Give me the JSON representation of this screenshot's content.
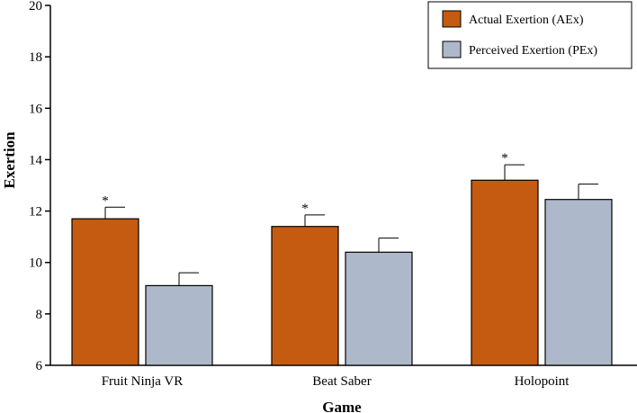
{
  "chart_data": {
    "type": "bar",
    "title": "",
    "xlabel": "Game",
    "ylabel": "Exertion",
    "ylim": [
      6,
      20
    ],
    "yticks": [
      6,
      8,
      10,
      12,
      14,
      16,
      18,
      20
    ],
    "categories": [
      "Fruit Ninja VR",
      "Beat Saber",
      "Holopoint"
    ],
    "series": [
      {
        "name": "Actual Exertion (AEx)",
        "color": "#c55a11",
        "values": [
          11.7,
          11.4,
          13.2
        ],
        "error": [
          0.45,
          0.45,
          0.6
        ],
        "significance": [
          "*",
          "*",
          "*"
        ]
      },
      {
        "name": "Perceived Exertion (PEx)",
        "color": "#adb9ca",
        "values": [
          9.1,
          10.4,
          12.45
        ],
        "error": [
          0.5,
          0.55,
          0.6
        ],
        "significance": [
          "",
          "",
          ""
        ]
      }
    ],
    "legend_position": "top-right",
    "grid": false
  }
}
